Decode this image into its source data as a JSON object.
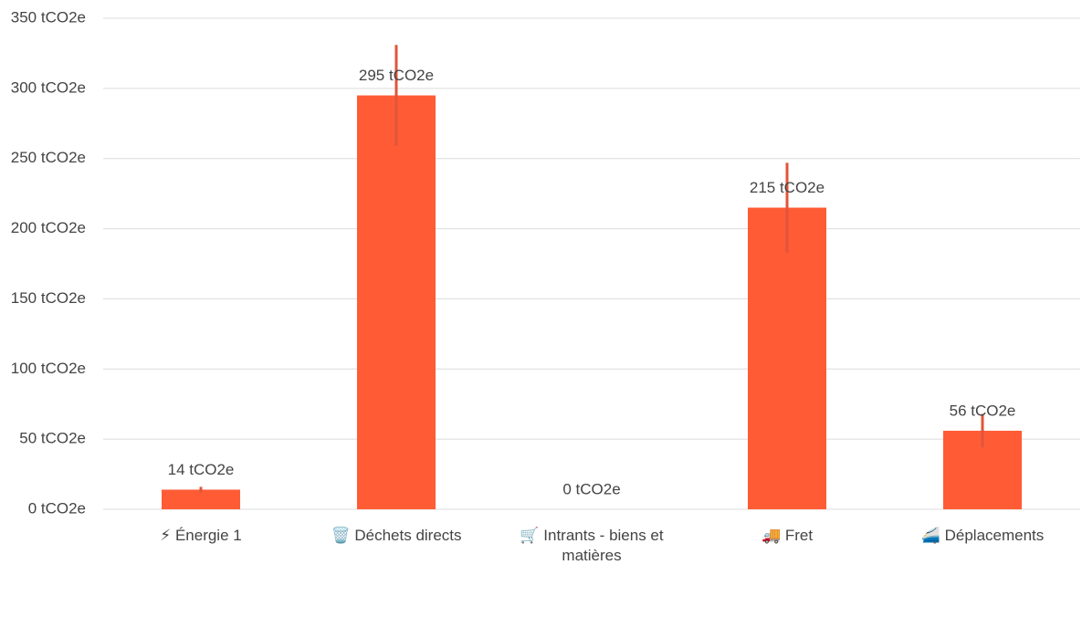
{
  "chart_data": {
    "type": "bar",
    "categories": [
      "⚡ Énergie 1",
      "🗑️ Déchets directs",
      "🛒 Intrants - biens et matières",
      "🚚 Fret",
      "🚄 Déplacements"
    ],
    "values": [
      14,
      295,
      0,
      215,
      56
    ],
    "value_labels": [
      "14 tCO2e",
      "295 tCO2e",
      "0 tCO2e",
      "215 tCO2e",
      "56 tCO2e"
    ],
    "errors": [
      2,
      36,
      0,
      32,
      12
    ],
    "color": "#ff5c35",
    "error_color": "#e0553a",
    "ylim": [
      0,
      350
    ],
    "yticks": [
      {
        "value": 0,
        "label": "0 tCO2e"
      },
      {
        "value": 50,
        "label": "50 tCO2e"
      },
      {
        "value": 100,
        "label": "100 tCO2e"
      },
      {
        "value": 150,
        "label": "150 tCO2e"
      },
      {
        "value": 200,
        "label": "200 tCO2e"
      },
      {
        "value": 250,
        "label": "250 tCO2e"
      },
      {
        "value": 300,
        "label": "300 tCO2e"
      },
      {
        "value": 350,
        "label": "350 tCO2e"
      }
    ],
    "grid": true
  }
}
